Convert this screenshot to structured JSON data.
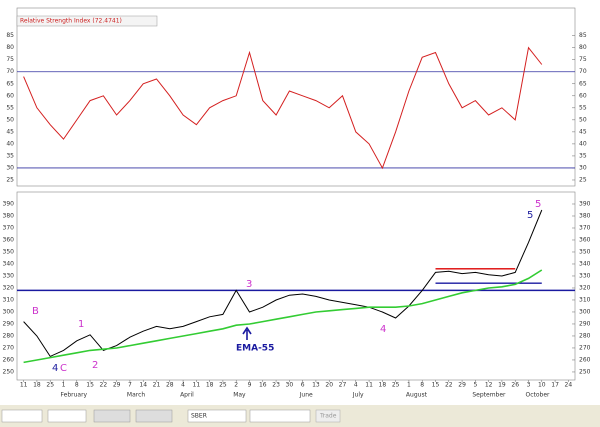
{
  "chart_data": [
    {
      "type": "line",
      "title": "Relative Strength Index (72.4741)",
      "series": [
        {
          "name": "RSI",
          "color": "#d42020",
          "values": [
            68,
            55,
            48,
            42,
            50,
            58,
            60,
            52,
            58,
            65,
            67,
            60,
            52,
            48,
            55,
            58,
            60,
            78,
            58,
            52,
            62,
            60,
            58,
            55,
            60,
            45,
            40,
            30,
            45,
            62,
            76,
            78,
            65,
            55,
            58,
            52,
            55,
            50,
            80,
            73,
            null,
            null
          ]
        }
      ],
      "ylim": [
        22.5,
        96.5
      ],
      "yticks": [
        25,
        30,
        35,
        40,
        45,
        50,
        55,
        60,
        65,
        70,
        75,
        80,
        85
      ],
      "levels": [
        {
          "value": 70,
          "color": "#3030a0"
        },
        {
          "value": 30,
          "color": "#3030a0"
        }
      ]
    },
    {
      "type": "line",
      "categories": [
        "11",
        "18",
        "25",
        "1",
        "8",
        "15",
        "22",
        "29",
        "7",
        "14",
        "21",
        "28",
        "4",
        "11",
        "18",
        "25",
        "2",
        "9",
        "16",
        "23",
        "30",
        "6",
        "13",
        "20",
        "27",
        "4",
        "11",
        "18",
        "25",
        "1",
        "8",
        "15",
        "22",
        "29",
        "5",
        "12",
        "19",
        "26",
        "3",
        "10",
        "17",
        "24"
      ],
      "month_labels": [
        null,
        null,
        null,
        "February",
        null,
        null,
        null,
        null,
        "March",
        null,
        null,
        null,
        "April",
        null,
        null,
        null,
        "May",
        null,
        null,
        null,
        null,
        "June",
        null,
        null,
        null,
        "July",
        null,
        null,
        null,
        "August",
        null,
        null,
        null,
        null,
        "September",
        null,
        null,
        null,
        "October",
        null,
        null,
        null
      ],
      "series": [
        {
          "name": "SBER",
          "color": "#000000",
          "values": [
            292,
            280,
            263,
            268,
            276,
            281,
            268,
            272,
            279,
            284,
            288,
            286,
            288,
            292,
            296,
            298,
            318,
            300,
            304,
            310,
            314,
            315,
            313,
            310,
            308,
            306,
            304,
            300,
            295,
            305,
            318,
            333,
            334,
            332,
            333,
            331,
            330,
            333,
            358,
            385,
            null,
            null
          ]
        },
        {
          "name": "EMA-55",
          "color": "#33cc33",
          "values": [
            258,
            260,
            262,
            264,
            266,
            268,
            269,
            270,
            272,
            274,
            276,
            278,
            280,
            282,
            284,
            286,
            289,
            290,
            292,
            294,
            296,
            298,
            300,
            301,
            302,
            303,
            304,
            304,
            304,
            305,
            307,
            310,
            313,
            316,
            318,
            320,
            321,
            323,
            328,
            335,
            null,
            null
          ]
        }
      ],
      "ylim": [
        243.3,
        400
      ],
      "yticks": [
        250,
        260,
        270,
        280,
        290,
        300,
        310,
        320,
        330,
        340,
        350,
        360,
        370,
        380,
        390
      ],
      "levels": [
        {
          "value": 318,
          "color": "#1a1aa0"
        }
      ],
      "segments": [
        {
          "value": 336,
          "color": "#dd0000",
          "from": 31,
          "to": 37
        },
        {
          "value": 324,
          "color": "#1a1aa0",
          "from": 31,
          "to": 39
        }
      ],
      "annotations": [
        "B",
        "4",
        "C",
        "1",
        "2",
        "3",
        "EMA-55",
        "4",
        "5",
        "5"
      ]
    }
  ],
  "toolbar": {
    "symbol": "SBER",
    "button": "Trade"
  }
}
